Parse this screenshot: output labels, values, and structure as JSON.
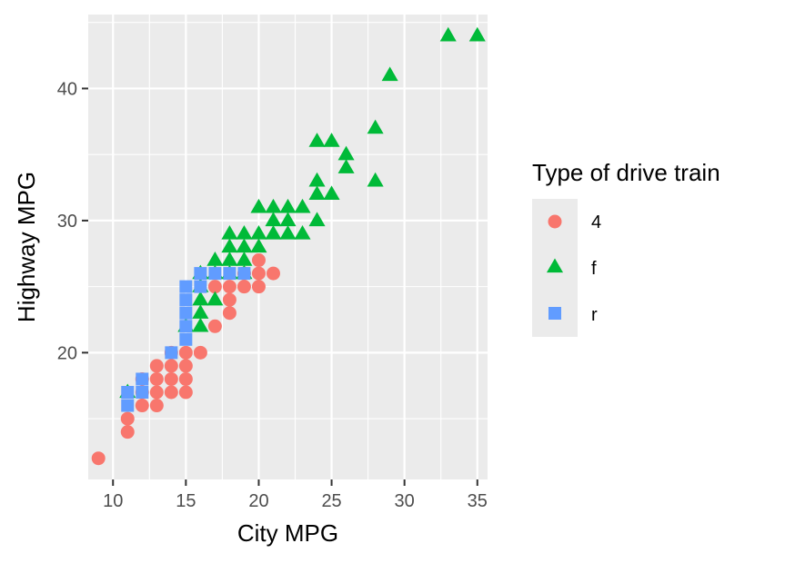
{
  "chart_data": {
    "type": "scatter",
    "title": "",
    "xlabel": "City MPG",
    "ylabel": "Highway MPG",
    "xlim": [
      8.3,
      35.7
    ],
    "ylim": [
      10.4,
      45.6
    ],
    "x_ticks": [
      10,
      15,
      20,
      25,
      30,
      35
    ],
    "y_ticks": [
      20,
      30,
      40
    ],
    "grid": true,
    "legend": {
      "title": "Type of drive train",
      "position": "right",
      "entries": [
        {
          "label": "4",
          "shape": "circle",
          "color": "#F8766D"
        },
        {
          "label": "f",
          "shape": "triangle",
          "color": "#00BA38"
        },
        {
          "label": "r",
          "shape": "square",
          "color": "#619CFF"
        }
      ]
    },
    "series": [
      {
        "name": "4",
        "shape": "circle",
        "color": "#F8766D",
        "points": [
          [
            9,
            12
          ],
          [
            11,
            14
          ],
          [
            11,
            15
          ],
          [
            12,
            16
          ],
          [
            12,
            17
          ],
          [
            12,
            18
          ],
          [
            13,
            16
          ],
          [
            13,
            17
          ],
          [
            13,
            18
          ],
          [
            13,
            19
          ],
          [
            14,
            17
          ],
          [
            14,
            18
          ],
          [
            14,
            19
          ],
          [
            14,
            20
          ],
          [
            15,
            17
          ],
          [
            15,
            18
          ],
          [
            15,
            19
          ],
          [
            15,
            20
          ],
          [
            16,
            20
          ],
          [
            17,
            22
          ],
          [
            17,
            25
          ],
          [
            18,
            23
          ],
          [
            18,
            24
          ],
          [
            18,
            25
          ],
          [
            19,
            25
          ],
          [
            19,
            26
          ],
          [
            20,
            25
          ],
          [
            20,
            26
          ],
          [
            20,
            27
          ],
          [
            21,
            26
          ]
        ]
      },
      {
        "name": "f",
        "shape": "triangle",
        "color": "#00BA38",
        "points": [
          [
            11,
            17
          ],
          [
            15,
            22
          ],
          [
            16,
            22
          ],
          [
            16,
            23
          ],
          [
            16,
            24
          ],
          [
            16,
            25
          ],
          [
            16,
            26
          ],
          [
            17,
            24
          ],
          [
            17,
            26
          ],
          [
            17,
            27
          ],
          [
            18,
            26
          ],
          [
            18,
            27
          ],
          [
            18,
            28
          ],
          [
            18,
            29
          ],
          [
            19,
            26
          ],
          [
            19,
            27
          ],
          [
            19,
            28
          ],
          [
            19,
            29
          ],
          [
            20,
            28
          ],
          [
            20,
            29
          ],
          [
            20,
            31
          ],
          [
            21,
            29
          ],
          [
            21,
            30
          ],
          [
            21,
            31
          ],
          [
            22,
            29
          ],
          [
            22,
            30
          ],
          [
            22,
            31
          ],
          [
            23,
            29
          ],
          [
            23,
            31
          ],
          [
            24,
            30
          ],
          [
            24,
            32
          ],
          [
            24,
            33
          ],
          [
            24,
            36
          ],
          [
            25,
            32
          ],
          [
            25,
            36
          ],
          [
            26,
            34
          ],
          [
            26,
            35
          ],
          [
            28,
            33
          ],
          [
            28,
            37
          ],
          [
            29,
            41
          ],
          [
            33,
            44
          ],
          [
            35,
            44
          ]
        ]
      },
      {
        "name": "r",
        "shape": "square",
        "color": "#619CFF",
        "points": [
          [
            11,
            16
          ],
          [
            11,
            17
          ],
          [
            12,
            17
          ],
          [
            12,
            18
          ],
          [
            14,
            20
          ],
          [
            15,
            21
          ],
          [
            15,
            22
          ],
          [
            15,
            23
          ],
          [
            15,
            24
          ],
          [
            15,
            25
          ],
          [
            16,
            25
          ],
          [
            16,
            26
          ],
          [
            17,
            26
          ],
          [
            18,
            26
          ],
          [
            19,
            26
          ]
        ]
      }
    ]
  }
}
